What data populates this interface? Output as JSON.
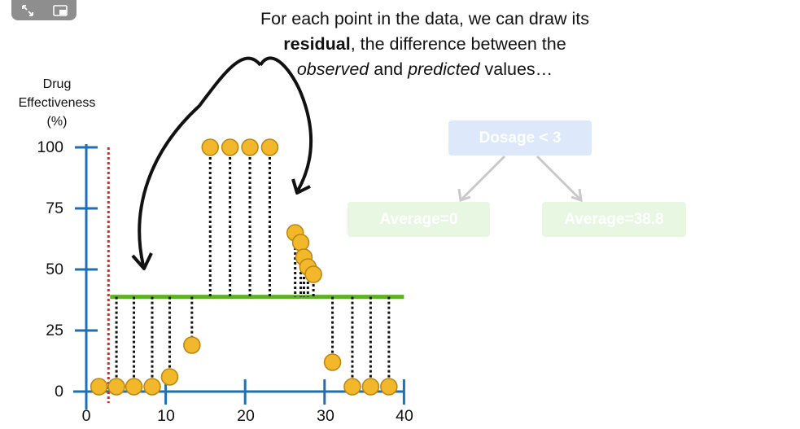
{
  "controls": {
    "fullscreen_icon": "expand-arrows-icon",
    "pip_icon": "picture-in-picture-icon"
  },
  "caption": {
    "line1": "For each point in the data, we can draw its",
    "line2_bold": "residual",
    "line2_rest": ", the difference between the",
    "line3_italic1": "observed",
    "line3_mid": " and ",
    "line3_italic2": "predicted",
    "line3_end": " values…"
  },
  "tree": {
    "root": "Dosage < 3",
    "left_leaf": "Average=0",
    "right_leaf": "Average=38.8"
  },
  "colors": {
    "axis": "#1f6fb5",
    "prediction_line": "#5db224",
    "threshold_line": "#d62a2a",
    "point_fill": "#f2b72a",
    "point_stroke": "#b98710",
    "residual": "#111111"
  },
  "chart_data": {
    "type": "scatter",
    "ylabel_lines": [
      "Drug",
      "Effectiveness",
      "(%)"
    ],
    "xlabel": "",
    "xlim": [
      0,
      40
    ],
    "ylim": [
      0,
      100
    ],
    "x_ticks": [
      "0",
      "10",
      "20",
      "30",
      "40"
    ],
    "y_ticks": [
      "0",
      "25",
      "50",
      "75",
      "100"
    ],
    "threshold_x": 3,
    "prediction": {
      "value": 38.8,
      "x_start": 3,
      "x_end": 40
    },
    "points": [
      {
        "x": 1.6,
        "y": 2
      },
      {
        "x": 3.8,
        "y": 2
      },
      {
        "x": 6.0,
        "y": 2
      },
      {
        "x": 8.3,
        "y": 2
      },
      {
        "x": 10.5,
        "y": 6
      },
      {
        "x": 13.3,
        "y": 19
      },
      {
        "x": 15.6,
        "y": 100
      },
      {
        "x": 18.1,
        "y": 100
      },
      {
        "x": 20.6,
        "y": 100
      },
      {
        "x": 23.1,
        "y": 100
      },
      {
        "x": 26.3,
        "y": 65
      },
      {
        "x": 27.0,
        "y": 61
      },
      {
        "x": 27.4,
        "y": 55
      },
      {
        "x": 27.9,
        "y": 51
      },
      {
        "x": 28.6,
        "y": 48
      },
      {
        "x": 31.0,
        "y": 12
      },
      {
        "x": 33.5,
        "y": 2
      },
      {
        "x": 35.8,
        "y": 2
      },
      {
        "x": 38.1,
        "y": 2
      }
    ]
  }
}
